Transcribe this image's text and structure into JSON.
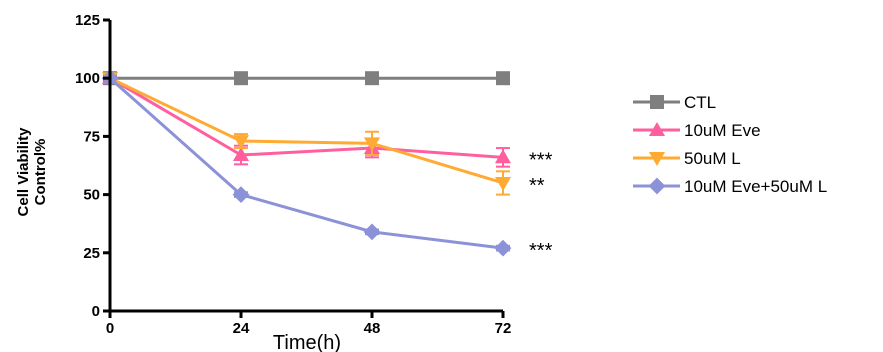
{
  "chart_data": {
    "type": "line",
    "title": "",
    "xlabel": "Time(h)",
    "ylabel_lines": [
      "Cell Viability",
      "Control%"
    ],
    "x": [
      0,
      24,
      48,
      72
    ],
    "x_ticks": [
      "0",
      "24",
      "48",
      "72"
    ],
    "y_ticks": [
      "0",
      "25",
      "50",
      "75",
      "100",
      "125"
    ],
    "xlim": [
      0,
      72
    ],
    "ylim": [
      0,
      125
    ],
    "grid": false,
    "legend_position": "right",
    "series": [
      {
        "name": "CTL",
        "values": [
          100,
          100,
          100,
          100
        ],
        "errors": [
          0,
          0,
          0,
          0
        ],
        "color": "#7f7f7f",
        "marker": "square",
        "significance": ""
      },
      {
        "name": "10uM Eve",
        "values": [
          100,
          67,
          70,
          66
        ],
        "errors": [
          0,
          4,
          4,
          4
        ],
        "color": "#ff5f9e",
        "marker": "triangle-up",
        "significance": "***"
      },
      {
        "name": "50uM L",
        "values": [
          100,
          73,
          72,
          55
        ],
        "errors": [
          0,
          3,
          5,
          5
        ],
        "color": "#ffaa33",
        "marker": "triangle-down",
        "significance": "**"
      },
      {
        "name": "10uM Eve+50uM L",
        "values": [
          100,
          50,
          34,
          27
        ],
        "errors": [
          0,
          1,
          1,
          1
        ],
        "color": "#8c92d8",
        "marker": "diamond",
        "significance": "***"
      }
    ]
  }
}
